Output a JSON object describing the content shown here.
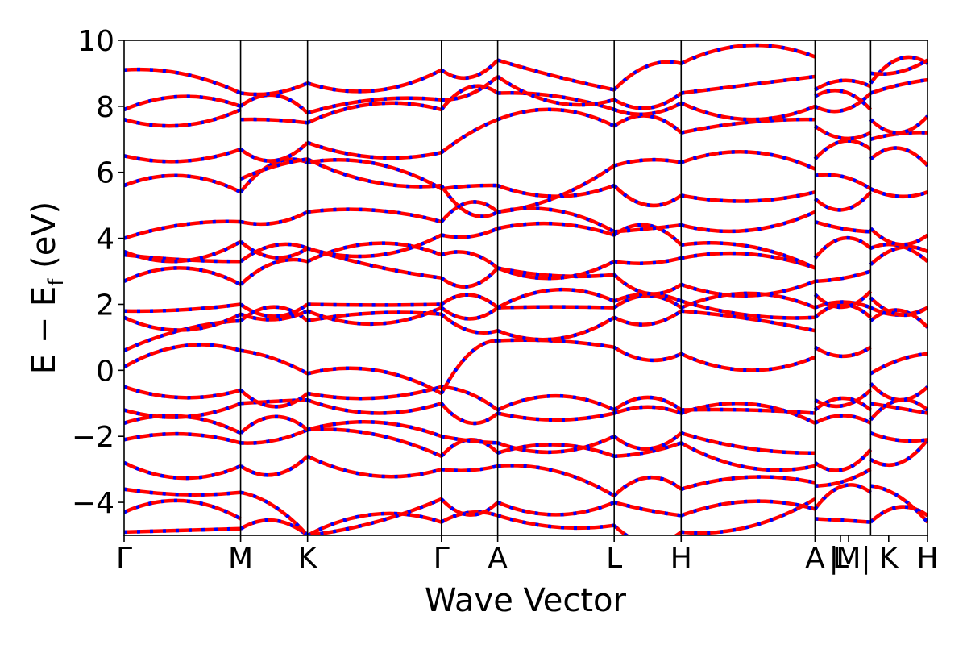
{
  "chart_data": {
    "type": "line",
    "xlabel": "Wave Vector",
    "ylabel": "E − E",
    "ylabel_subscript": "f",
    "ylabel_unit": " (eV)",
    "ylim": [
      -5,
      10
    ],
    "yticks": [
      {
        "value": -4,
        "label": "−4"
      },
      {
        "value": -2,
        "label": "−2"
      },
      {
        "value": 0,
        "label": "0"
      },
      {
        "value": 2,
        "label": "2"
      },
      {
        "value": 4,
        "label": "4"
      },
      {
        "value": 6,
        "label": "6"
      },
      {
        "value": 8,
        "label": "8"
      },
      {
        "value": 10,
        "label": "10"
      }
    ],
    "xlim": [
      0,
      12
    ],
    "kpoints": [
      {
        "label": "Γ",
        "x": 0.0
      },
      {
        "label": "M",
        "x": 1.74
      },
      {
        "label": "K",
        "x": 2.74
      },
      {
        "label": "Γ",
        "x": 4.74
      },
      {
        "label": "A",
        "x": 5.58
      },
      {
        "label": "L",
        "x": 7.32
      },
      {
        "label": "H",
        "x": 8.32
      },
      {
        "label": "A",
        "x": 10.32
      },
      {
        "label": "|",
        "x": 10.6
      },
      {
        "label": "L",
        "x": 10.7
      },
      {
        "label": "M",
        "x": 10.82
      },
      {
        "label": "|",
        "x": 11.08
      },
      {
        "label": "K",
        "x": 11.42
      },
      {
        "label": "H",
        "x": 12.0
      }
    ],
    "segment_boundaries": [
      0,
      1.74,
      2.74,
      4.74,
      5.58,
      7.32,
      8.32,
      10.32,
      11.15,
      12.0
    ],
    "series_colors": {
      "primary": "#ff0000",
      "overlay": "#0000ff"
    },
    "overlay_style": "dashed",
    "segments": [
      {
        "x0": 0.0,
        "x1": 1.74,
        "bands": [
          [
            -4.9,
            -4.8
          ],
          [
            -4.3,
            -4.5
          ],
          [
            -3.6,
            -3.7
          ],
          [
            -2.8,
            -2.9
          ],
          [
            -2.1,
            -2.2
          ],
          [
            -1.6,
            -1.9
          ],
          [
            -1.2,
            -1.0
          ],
          [
            -0.5,
            -0.6
          ],
          [
            0.1,
            0.6
          ],
          [
            0.6,
            1.5
          ],
          [
            1.6,
            1.7
          ],
          [
            1.8,
            2.0
          ],
          [
            2.7,
            2.6
          ],
          [
            3.5,
            3.3
          ],
          [
            3.6,
            3.9
          ],
          [
            4.0,
            4.5
          ],
          [
            5.6,
            5.4
          ],
          [
            6.5,
            6.7
          ],
          [
            7.6,
            7.9
          ],
          [
            7.9,
            8.0
          ],
          [
            9.1,
            8.4
          ]
        ]
      },
      {
        "x0": 1.74,
        "x1": 2.74,
        "bands": [
          [
            -4.8,
            -5.0
          ],
          [
            -3.7,
            -5.0
          ],
          [
            -2.9,
            -2.6
          ],
          [
            -2.2,
            -1.8
          ],
          [
            -1.9,
            -1.8
          ],
          [
            -1.0,
            -0.9
          ],
          [
            -0.6,
            -0.7
          ],
          [
            0.6,
            -0.1
          ],
          [
            1.5,
            1.5
          ],
          [
            1.7,
            1.8
          ],
          [
            2.0,
            2.0
          ],
          [
            2.6,
            3.3
          ],
          [
            3.3,
            3.7
          ],
          [
            3.9,
            3.7
          ],
          [
            4.5,
            4.8
          ],
          [
            5.4,
            6.3
          ],
          [
            5.8,
            6.4
          ],
          [
            6.7,
            6.9
          ],
          [
            7.6,
            7.5
          ],
          [
            8.0,
            7.8
          ],
          [
            8.4,
            8.7
          ]
        ]
      },
      {
        "x0": 2.74,
        "x1": 4.74,
        "bands": [
          [
            -5.0,
            -4.6
          ],
          [
            -5.0,
            -3.9
          ],
          [
            -2.6,
            -3.0
          ],
          [
            -1.8,
            -2.6
          ],
          [
            -1.8,
            -2.0
          ],
          [
            -0.9,
            -1.0
          ],
          [
            -0.7,
            -0.5
          ],
          [
            -0.1,
            -0.7
          ],
          [
            1.5,
            1.7
          ],
          [
            1.8,
            1.9
          ],
          [
            2.0,
            2.0
          ],
          [
            3.3,
            3.5
          ],
          [
            3.7,
            2.8
          ],
          [
            3.7,
            4.1
          ],
          [
            4.8,
            4.5
          ],
          [
            6.3,
            5.5
          ],
          [
            6.4,
            5.6
          ],
          [
            6.9,
            6.6
          ],
          [
            7.5,
            7.9
          ],
          [
            7.8,
            8.2
          ],
          [
            8.7,
            9.1
          ]
        ]
      },
      {
        "x0": 4.74,
        "x1": 5.58,
        "bands": [
          [
            -4.6,
            -4.4
          ],
          [
            -3.9,
            -4.0
          ],
          [
            -3.0,
            -2.9
          ],
          [
            -2.6,
            -2.5
          ],
          [
            -2.0,
            -2.2
          ],
          [
            -1.0,
            -1.3
          ],
          [
            -0.5,
            -1.2
          ],
          [
            -0.7,
            0.9
          ],
          [
            1.7,
            1.2
          ],
          [
            1.9,
            1.9
          ],
          [
            2.0,
            1.9
          ],
          [
            3.5,
            3.1
          ],
          [
            2.8,
            3.1
          ],
          [
            4.1,
            4.3
          ],
          [
            4.5,
            4.8
          ],
          [
            5.5,
            5.6
          ],
          [
            5.6,
            4.8
          ],
          [
            6.6,
            7.6
          ],
          [
            7.9,
            8.4
          ],
          [
            8.2,
            8.9
          ],
          [
            9.1,
            9.4
          ]
        ]
      },
      {
        "x0": 5.58,
        "x1": 7.32,
        "bands": [
          [
            -4.4,
            -4.7
          ],
          [
            -4.0,
            -4.0
          ],
          [
            -2.9,
            -3.8
          ],
          [
            -2.5,
            -2.6
          ],
          [
            -2.2,
            -2.0
          ],
          [
            -1.3,
            -1.3
          ],
          [
            -1.2,
            -1.2
          ],
          [
            0.9,
            0.7
          ],
          [
            1.2,
            1.6
          ],
          [
            1.9,
            1.9
          ],
          [
            1.9,
            2.1
          ],
          [
            3.1,
            2.9
          ],
          [
            3.1,
            3.3
          ],
          [
            4.3,
            4.1
          ],
          [
            4.8,
            4.2
          ],
          [
            5.6,
            5.6
          ],
          [
            4.8,
            6.2
          ],
          [
            7.6,
            7.4
          ],
          [
            8.4,
            7.9
          ],
          [
            8.9,
            8.2
          ],
          [
            9.4,
            8.5
          ]
        ]
      },
      {
        "x0": 7.32,
        "x1": 8.32,
        "bands": [
          [
            -4.7,
            -4.9
          ],
          [
            -4.0,
            -4.4
          ],
          [
            -3.8,
            -3.6
          ],
          [
            -2.6,
            -2.2
          ],
          [
            -2.0,
            -1.9
          ],
          [
            -1.3,
            -1.3
          ],
          [
            -1.2,
            -1.2
          ],
          [
            0.7,
            0.5
          ],
          [
            1.6,
            1.8
          ],
          [
            1.9,
            1.9
          ],
          [
            2.1,
            2.1
          ],
          [
            2.9,
            2.6
          ],
          [
            3.3,
            3.4
          ],
          [
            4.1,
            3.8
          ],
          [
            4.2,
            4.4
          ],
          [
            5.6,
            5.3
          ],
          [
            6.2,
            6.3
          ],
          [
            7.4,
            7.2
          ],
          [
            7.9,
            8.1
          ],
          [
            8.2,
            8.4
          ],
          [
            8.5,
            9.3
          ]
        ]
      },
      {
        "x0": 8.32,
        "x1": 10.32,
        "bands": [
          [
            -4.9,
            -3.9
          ],
          [
            -4.4,
            -4.2
          ],
          [
            -3.6,
            -3.4
          ],
          [
            -2.2,
            -2.9
          ],
          [
            -1.9,
            -2.5
          ],
          [
            -1.3,
            -1.6
          ],
          [
            -1.2,
            -1.3
          ],
          [
            0.5,
            0.4
          ],
          [
            1.8,
            1.2
          ],
          [
            1.9,
            1.9
          ],
          [
            2.1,
            1.6
          ],
          [
            2.6,
            2.7
          ],
          [
            3.4,
            3.1
          ],
          [
            3.8,
            3.1
          ],
          [
            4.4,
            4.8
          ],
          [
            5.3,
            5.4
          ],
          [
            6.3,
            6.1
          ],
          [
            7.2,
            7.6
          ],
          [
            8.1,
            8.0
          ],
          [
            8.4,
            8.9
          ],
          [
            9.3,
            9.5
          ]
        ]
      },
      {
        "x0": 10.32,
        "x1": 11.15,
        "bands": [
          [
            -4.5,
            -4.6
          ],
          [
            -4.2,
            -3.7
          ],
          [
            -3.5,
            -3.0
          ],
          [
            -2.8,
            -2.4
          ],
          [
            -1.6,
            -1.6
          ],
          [
            -1.2,
            -1.2
          ],
          [
            -0.9,
            -0.6
          ],
          [
            0.7,
            0.7
          ],
          [
            1.6,
            1.6
          ],
          [
            1.9,
            1.9
          ],
          [
            2.3,
            2.4
          ],
          [
            2.7,
            3.0
          ],
          [
            3.4,
            3.7
          ],
          [
            4.5,
            4.2
          ],
          [
            5.2,
            5.4
          ],
          [
            5.9,
            5.5
          ],
          [
            6.4,
            6.7
          ],
          [
            7.4,
            7.2
          ],
          [
            8.0,
            8.4
          ],
          [
            8.3,
            7.9
          ],
          [
            8.5,
            8.6
          ]
        ]
      },
      {
        "x0": 11.15,
        "x1": 12.0,
        "bands": [
          [
            -4.6,
            -4.4
          ],
          [
            -3.5,
            -4.6
          ],
          [
            -2.7,
            -2.1
          ],
          [
            -1.9,
            -2.1
          ],
          [
            -1.5,
            -1.2
          ],
          [
            -1.0,
            -1.3
          ],
          [
            -0.4,
            -0.5
          ],
          [
            -0.1,
            0.5
          ],
          [
            1.5,
            1.3
          ],
          [
            1.9,
            1.9
          ],
          [
            2.2,
            1.9
          ],
          [
            3.2,
            3.6
          ],
          [
            3.7,
            3.3
          ],
          [
            4.3,
            4.1
          ],
          [
            5.5,
            5.4
          ],
          [
            6.4,
            6.2
          ],
          [
            7.0,
            7.2
          ],
          [
            7.6,
            7.7
          ],
          [
            8.4,
            8.8
          ],
          [
            8.7,
            9.3
          ],
          [
            9.0,
            9.4
          ]
        ]
      }
    ]
  }
}
